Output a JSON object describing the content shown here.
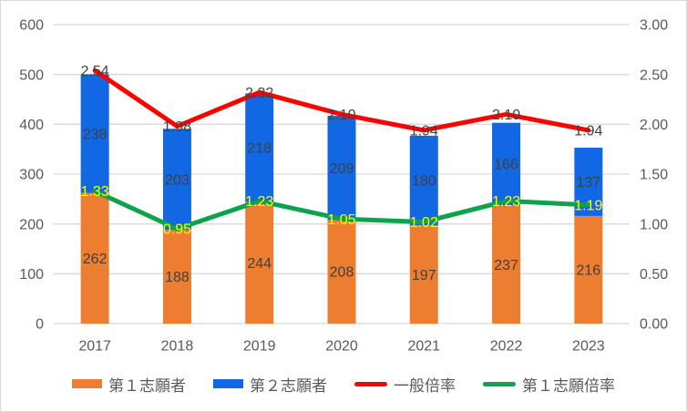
{
  "chart_data": {
    "type": "bar",
    "subtype": "stacked-bar-with-lines-combo",
    "title": "",
    "categories": [
      "2017",
      "2018",
      "2019",
      "2020",
      "2021",
      "2022",
      "2023"
    ],
    "left_axis": {
      "min": 0,
      "max": 600,
      "ticks": [
        "600",
        "500",
        "400",
        "300",
        "200",
        "100",
        "0"
      ]
    },
    "right_axis": {
      "min": 0.0,
      "max": 3.0,
      "ticks": [
        "3.00",
        "2.50",
        "2.00",
        "1.50",
        "1.00",
        "0.50",
        "0.00"
      ]
    },
    "grid": "horizontal",
    "legend_position": "bottom",
    "series": [
      {
        "name": "第１志願者",
        "type": "bar",
        "axis": "left",
        "color": "#ED7D31",
        "label_color": "#404040",
        "values": [
          262,
          188,
          244,
          208,
          197,
          237,
          216
        ],
        "labels": [
          "262",
          "188",
          "244",
          "208",
          "197",
          "237",
          "216"
        ]
      },
      {
        "name": "第２志願者",
        "type": "bar",
        "axis": "left",
        "color": "#1267E3",
        "label_color": "#404040",
        "values": [
          238,
          203,
          218,
          209,
          180,
          166,
          137
        ],
        "labels": [
          "238",
          "203",
          "218",
          "209",
          "180",
          "166",
          "137"
        ]
      },
      {
        "name": "一般倍率",
        "type": "line",
        "axis": "right",
        "color": "#FF0000",
        "label_color": "#404040",
        "values": [
          2.54,
          1.98,
          2.32,
          2.1,
          1.94,
          2.1,
          1.94
        ],
        "labels": [
          "2.54",
          "1.98",
          "2.32",
          "2.10",
          "1.94",
          "2.10",
          "1.94"
        ]
      },
      {
        "name": "第１志願倍率",
        "type": "line",
        "axis": "right",
        "color": "#0DA24C",
        "label_color": "#FFFF00",
        "values": [
          1.33,
          0.95,
          1.23,
          1.05,
          1.02,
          1.23,
          1.19
        ],
        "labels": [
          "1.33",
          "0.95",
          "1.23",
          "1.05",
          "1.02",
          "1.23",
          "1.19"
        ]
      }
    ]
  },
  "colors": {
    "background": "#FFFFFF",
    "border": "#D9D9D9",
    "gridline": "#D9D9D9",
    "axis_text": "#595959"
  }
}
